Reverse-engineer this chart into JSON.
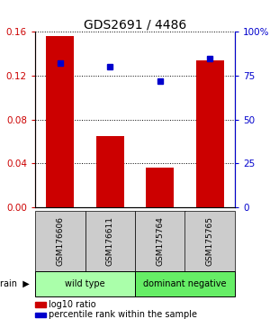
{
  "title": "GDS2691 / 4486",
  "samples": [
    "GSM176606",
    "GSM176611",
    "GSM175764",
    "GSM175765"
  ],
  "log10_ratio": [
    0.156,
    0.065,
    0.036,
    0.134
  ],
  "percentile_rank": [
    82,
    80,
    72,
    85
  ],
  "bar_color": "#cc0000",
  "dot_color": "#0000cc",
  "ylim_left": [
    0,
    0.16
  ],
  "ylim_right": [
    0,
    100
  ],
  "yticks_left": [
    0,
    0.04,
    0.08,
    0.12,
    0.16
  ],
  "yticks_right": [
    0,
    25,
    50,
    75,
    100
  ],
  "ytick_labels_right": [
    "0",
    "25",
    "50",
    "75",
    "100%"
  ],
  "groups": [
    {
      "label": "wild type",
      "indices": [
        0,
        1
      ],
      "color": "#aaffaa"
    },
    {
      "label": "dominant negative",
      "indices": [
        2,
        3
      ],
      "color": "#66ee66"
    }
  ],
  "strain_label": "strain",
  "legend_items": [
    {
      "color": "#cc0000",
      "label": "log10 ratio"
    },
    {
      "color": "#0000cc",
      "label": "percentile rank within the sample"
    }
  ],
  "sample_box_color": "#cccccc",
  "bar_width": 0.55,
  "left_axis_color": "#cc0000",
  "right_axis_color": "#0000cc",
  "fig_width": 3.0,
  "fig_height": 3.54,
  "dpi": 100
}
